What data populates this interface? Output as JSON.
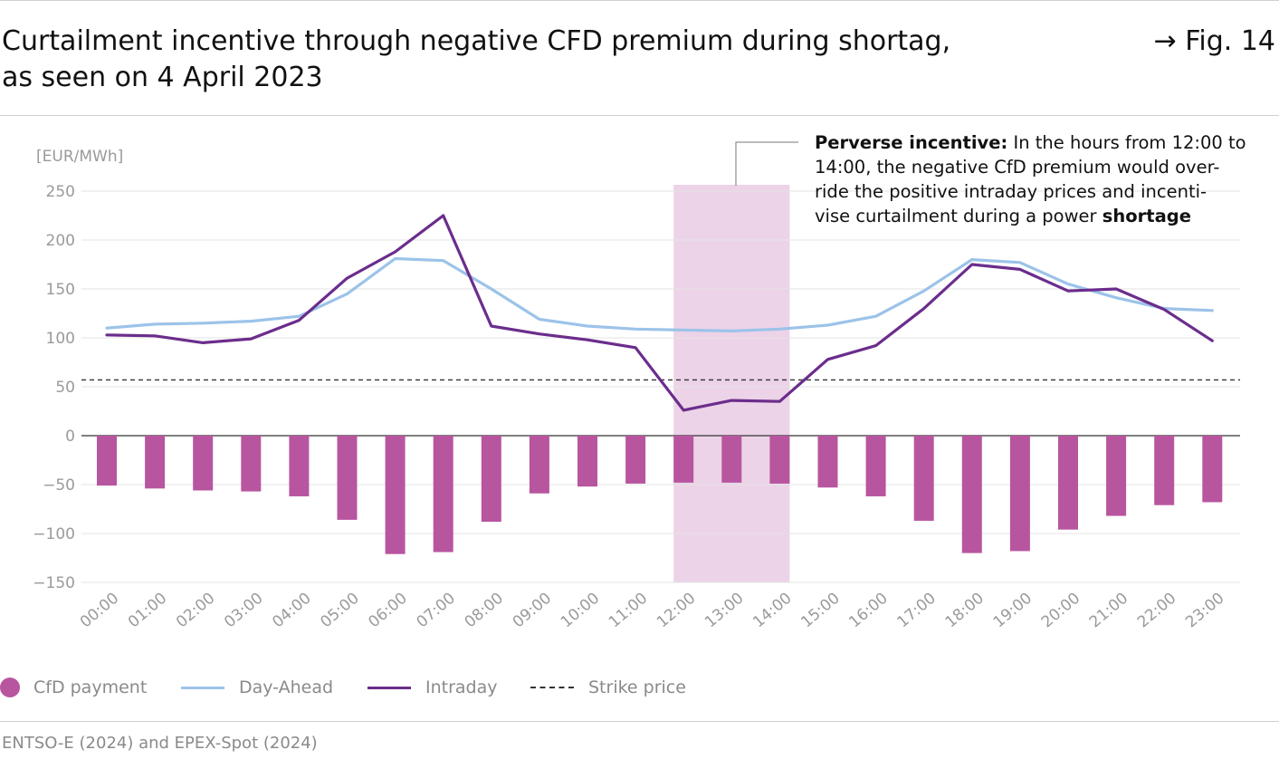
{
  "header": {
    "title_line1": "Curtailment incentive through negative CFD premium during shortag,",
    "title_line2": "as seen on 4 April 2023",
    "fig_ref": "→ Fig. 14"
  },
  "annotation": {
    "bold_lead": "Perverse incentive:",
    "line1_rest": " In the hours from 12:00 to",
    "line2": "14:00, the negative CfD premium would over-",
    "line3": "ride the positive intraday prices and incenti-",
    "line4_start": "vise curtailment during a power ",
    "line4_bold": "shortage"
  },
  "legend": {
    "cfd": "CfD payment",
    "day_ahead": "Day-Ahead",
    "intraday": "Intraday",
    "strike": "Strike price"
  },
  "source": "ENTSO-E (2024) and EPEX-Spot (2024)",
  "colors": {
    "cfd": "#b8559f",
    "day_ahead": "#9cc3e9",
    "intraday": "#6b2d8c",
    "highlight": "#ecd3e8",
    "strike": "#333333",
    "grid": "#e3e3e3",
    "axis_text": "#9a9a9a"
  },
  "chart_data": {
    "type": "bar",
    "unit_label": "[EUR/MWh]",
    "categories": [
      "00:00",
      "01:00",
      "02:00",
      "03:00",
      "04:00",
      "05:00",
      "06:00",
      "07:00",
      "08:00",
      "09:00",
      "10:00",
      "11:00",
      "12:00",
      "13:00",
      "14:00",
      "15:00",
      "16:00",
      "17:00",
      "18:00",
      "19:00",
      "20:00",
      "21:00",
      "22:00",
      "23:00"
    ],
    "ylim": [
      -150,
      250
    ],
    "yticks": [
      250,
      200,
      150,
      100,
      50,
      0,
      -50,
      -100,
      -150
    ],
    "ytick_labels": [
      "250",
      "200",
      "150",
      "100",
      "50",
      "0",
      "−50",
      "−100",
      "−150"
    ],
    "grid": true,
    "legend_position": "bottom",
    "highlight_range": [
      "12:00",
      "14:00"
    ],
    "strike_price": 57,
    "series": [
      {
        "name": "CfD payment",
        "kind": "bar",
        "values": [
          -51,
          -54,
          -56,
          -57,
          -62,
          -86,
          -121,
          -119,
          -88,
          -59,
          -52,
          -49,
          -48,
          -48,
          -49,
          -53,
          -62,
          -87,
          -120,
          -118,
          -96,
          -82,
          -71,
          -68
        ]
      },
      {
        "name": "Day-Ahead",
        "kind": "line",
        "values": [
          110,
          114,
          115,
          117,
          122,
          145,
          181,
          179,
          150,
          119,
          112,
          109,
          108,
          107,
          109,
          113,
          122,
          148,
          180,
          177,
          155,
          141,
          130,
          128
        ]
      },
      {
        "name": "Intraday",
        "kind": "line",
        "values": [
          103,
          102,
          95,
          99,
          118,
          161,
          188,
          225,
          112,
          104,
          98,
          90,
          26,
          36,
          35,
          78,
          92,
          130,
          175,
          170,
          148,
          150,
          129,
          97
        ]
      },
      {
        "name": "Strike price",
        "kind": "dashed",
        "value": 57
      }
    ]
  }
}
